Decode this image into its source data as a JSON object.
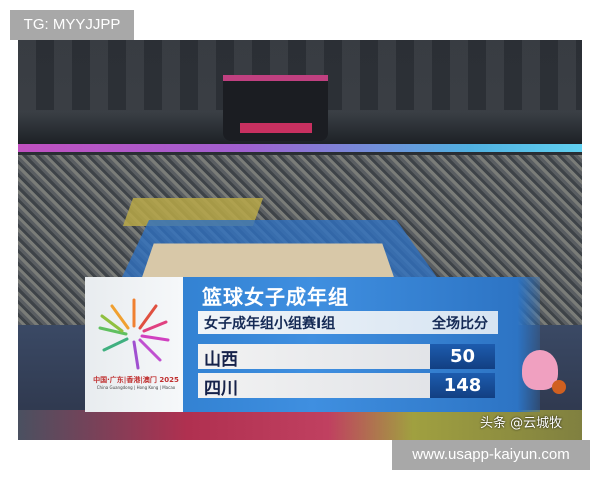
{
  "watermarks": {
    "top_left": "TG: MYYJJPP",
    "bottom_right": "www.usapp-kaiyun.com"
  },
  "logo": {
    "cn": "中国·广东|香港|澳门 2025",
    "en": "China Guangdong | Hong Kong | Macao"
  },
  "scoreboard": {
    "title": "篮球女子成年组",
    "subtitle": "女子成年组小组赛I组",
    "score_header": "全场比分",
    "teams": [
      {
        "name": "山西",
        "score": "50"
      },
      {
        "name": "四川",
        "score": "148"
      }
    ],
    "colors": {
      "panel": "#3f8fe0",
      "score_box": "#1d5cae",
      "text_dark": "#16224a"
    }
  },
  "credit": "头条 @云城牧"
}
